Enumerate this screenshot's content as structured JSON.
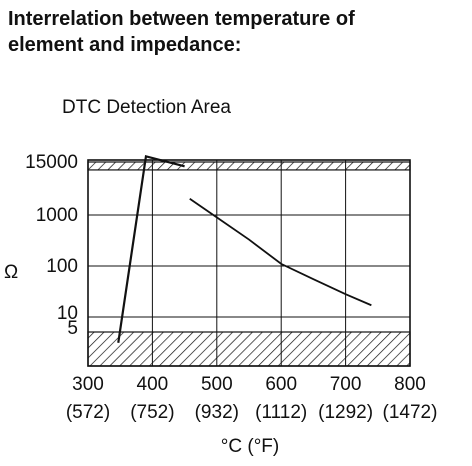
{
  "title_lines": [
    "Interrelation between temperature of",
    "element and impedance:"
  ],
  "chart_data": {
    "type": "line",
    "x_axis": {
      "label": "°C (°F)",
      "ticks_c": [
        "300",
        "400",
        "500",
        "600",
        "700",
        "800"
      ],
      "ticks_f": [
        "(572)",
        "(752)",
        "(932)",
        "(1112)",
        "(1292)",
        "(1472)"
      ],
      "range": [
        300,
        800
      ]
    },
    "y_axis": {
      "label": "Ω",
      "ticks": [
        "15000",
        "1000",
        "100",
        "10",
        "5"
      ],
      "scale": "log"
    },
    "annotation": "DTC Detection Area",
    "detection_bands": [
      {
        "name": "upper",
        "y_range": [
          10000,
          15000
        ]
      },
      {
        "name": "lower",
        "y_range": [
          1,
          5
        ]
      }
    ],
    "series": [
      {
        "points": [
          [
            458,
            2300
          ],
          [
            500,
            900
          ],
          [
            550,
            330
          ],
          [
            600,
            110
          ],
          [
            650,
            55
          ],
          [
            700,
            28
          ],
          [
            740,
            17
          ]
        ]
      }
    ],
    "annotation_path": [
      [
        347,
        3
      ],
      [
        390,
        20000
      ],
      [
        450,
        12000
      ]
    ],
    "grid": true
  }
}
